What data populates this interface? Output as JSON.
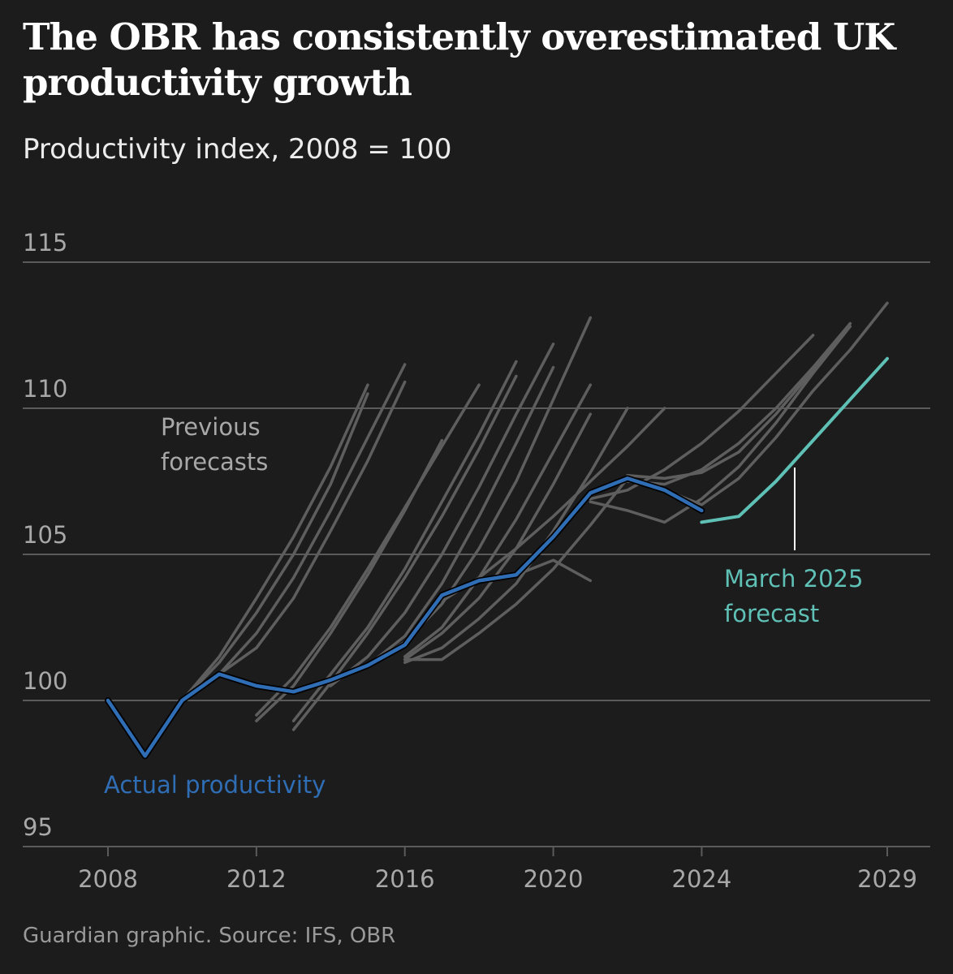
{
  "title": "The OBR has consistently overestimated UK productivity growth",
  "subtitle": "Productivity index, 2008 = 100",
  "source": "Guardian graphic. Source: IFS, OBR",
  "colors": {
    "background": "#1c1c1c",
    "gridline": "#5a5a5a",
    "axis_text": "#a8a8a8",
    "previous": "#5e5e5e",
    "previous_label": "#a8a8a8",
    "actual": "#2f6db5",
    "actual_outline": "#000000",
    "march2025": "#5fc1b6"
  },
  "chart_data": {
    "type": "line",
    "title": "The OBR has consistently overestimated UK productivity growth",
    "ylabel": "Productivity index, 2008 = 100",
    "xlim": [
      2008,
      2029
    ],
    "ylim": [
      95,
      115
    ],
    "yticks": [
      95,
      100,
      105,
      110,
      115
    ],
    "xticks": [
      2008,
      2012,
      2016,
      2020,
      2024,
      2029
    ],
    "grid": true,
    "annotations": {
      "previous": [
        "Previous",
        "forecasts"
      ],
      "actual": "Actual productivity",
      "march": [
        "March 2025",
        "forecast"
      ]
    },
    "series": [
      {
        "name": "Actual productivity",
        "role": "actual",
        "x": [
          2008,
          2009,
          2010,
          2011,
          2012,
          2013,
          2014,
          2015,
          2016,
          2017,
          2018,
          2019,
          2020,
          2021,
          2022,
          2023,
          2024
        ],
        "y": [
          100.0,
          98.1,
          100.0,
          100.9,
          100.5,
          100.3,
          100.7,
          101.2,
          101.9,
          103.6,
          104.1,
          104.3,
          105.6,
          107.1,
          107.6,
          107.2,
          106.5
        ]
      },
      {
        "name": "March 2025 forecast",
        "role": "march",
        "x": [
          2024,
          2025,
          2026,
          2027,
          2028,
          2029
        ],
        "y": [
          106.1,
          106.3,
          107.5,
          108.9,
          110.3,
          111.7
        ]
      },
      {
        "name": "Previous forecast",
        "role": "previous",
        "x": [
          2010,
          2011,
          2012,
          2013,
          2014,
          2015
        ],
        "y": [
          100.0,
          101.5,
          103.5,
          105.6,
          108.0,
          110.8
        ]
      },
      {
        "name": "Previous forecast",
        "role": "previous",
        "x": [
          2010,
          2011,
          2012,
          2013,
          2014,
          2015
        ],
        "y": [
          100.0,
          101.3,
          103.0,
          105.0,
          107.4,
          110.5
        ]
      },
      {
        "name": "Previous forecast",
        "role": "previous",
        "x": [
          2011,
          2012,
          2013,
          2014,
          2015,
          2016
        ],
        "y": [
          100.9,
          102.3,
          104.2,
          106.5,
          109.0,
          111.5
        ]
      },
      {
        "name": "Previous forecast",
        "role": "previous",
        "x": [
          2011,
          2012,
          2013,
          2014,
          2015,
          2016
        ],
        "y": [
          100.9,
          101.8,
          103.5,
          105.8,
          108.2,
          110.9
        ]
      },
      {
        "name": "Previous forecast",
        "role": "previous",
        "x": [
          2012,
          2013,
          2014,
          2015,
          2016,
          2017
        ],
        "y": [
          99.3,
          100.5,
          102.3,
          104.3,
          106.5,
          108.9
        ]
      },
      {
        "name": "Previous forecast",
        "role": "previous",
        "x": [
          2012,
          2013,
          2014,
          2015,
          2016,
          2017,
          2018
        ],
        "y": [
          99.5,
          100.8,
          102.5,
          104.5,
          106.6,
          108.7,
          110.8
        ]
      },
      {
        "name": "Previous forecast",
        "role": "previous",
        "x": [
          2013,
          2014,
          2015,
          2016,
          2017,
          2018,
          2019
        ],
        "y": [
          99.0,
          100.6,
          102.3,
          104.2,
          106.3,
          108.6,
          111.1
        ]
      },
      {
        "name": "Previous forecast",
        "role": "previous",
        "x": [
          2013,
          2014,
          2015,
          2016,
          2017,
          2018,
          2019
        ],
        "y": [
          99.3,
          100.9,
          102.5,
          104.5,
          106.8,
          109.1,
          111.6
        ]
      },
      {
        "name": "Previous forecast",
        "role": "previous",
        "x": [
          2014,
          2015,
          2016,
          2017,
          2018,
          2019,
          2020
        ],
        "y": [
          100.5,
          101.5,
          103.0,
          105.0,
          107.3,
          109.8,
          112.2
        ]
      },
      {
        "name": "Previous forecast",
        "role": "previous",
        "x": [
          2015,
          2016,
          2017,
          2018,
          2019,
          2020
        ],
        "y": [
          101.2,
          102.2,
          104.0,
          106.3,
          108.8,
          111.4
        ]
      },
      {
        "name": "Previous forecast",
        "role": "previous",
        "x": [
          2015,
          2016,
          2017,
          2018,
          2019,
          2020,
          2021
        ],
        "y": [
          101.2,
          102.0,
          103.3,
          105.2,
          107.5,
          110.3,
          113.1
        ]
      },
      {
        "name": "Previous forecast",
        "role": "previous",
        "x": [
          2016,
          2017,
          2018,
          2019,
          2020,
          2021
        ],
        "y": [
          101.5,
          102.5,
          104.2,
          106.2,
          108.5,
          110.8
        ]
      },
      {
        "name": "Previous forecast",
        "role": "previous",
        "x": [
          2016,
          2017,
          2018,
          2019,
          2020,
          2021
        ],
        "y": [
          101.4,
          102.3,
          103.5,
          105.2,
          107.4,
          109.8
        ]
      },
      {
        "name": "Previous forecast",
        "role": "previous",
        "x": [
          2016,
          2017,
          2018,
          2019,
          2020,
          2021,
          2022
        ],
        "y": [
          101.3,
          101.8,
          102.8,
          104.0,
          105.8,
          107.8,
          110.0
        ]
      },
      {
        "name": "Previous forecast",
        "role": "previous",
        "x": [
          2016,
          2017,
          2018,
          2019,
          2020,
          2021,
          2022
        ],
        "y": [
          101.4,
          101.4,
          102.3,
          103.3,
          104.5,
          106.0,
          107.6
        ]
      },
      {
        "name": "Previous forecast",
        "role": "previous",
        "x": [
          2017,
          2018,
          2019,
          2020,
          2021,
          2022,
          2023
        ],
        "y": [
          103.4,
          104.2,
          105.2,
          106.3,
          107.5,
          108.7,
          110.0
        ]
      },
      {
        "name": "Previous forecast",
        "role": "previous",
        "x": [
          2019,
          2020,
          2021
        ],
        "y": [
          104.3,
          104.8,
          104.1
        ]
      },
      {
        "name": "Previous forecast",
        "role": "previous",
        "x": [
          2021,
          2022,
          2023,
          2024,
          2025,
          2026,
          2027
        ],
        "y": [
          106.9,
          107.2,
          107.9,
          108.8,
          109.9,
          111.2,
          112.5
        ]
      },
      {
        "name": "Previous forecast",
        "role": "previous",
        "x": [
          2021,
          2022,
          2023,
          2024,
          2025,
          2026,
          2027,
          2028
        ],
        "y": [
          106.8,
          106.5,
          106.1,
          106.9,
          108.0,
          109.5,
          111.2,
          112.8
        ]
      },
      {
        "name": "Previous forecast",
        "role": "previous",
        "x": [
          2022,
          2023,
          2024,
          2025,
          2026,
          2027,
          2028
        ],
        "y": [
          107.5,
          107.4,
          107.9,
          108.8,
          110.0,
          111.4,
          112.9
        ]
      },
      {
        "name": "Previous forecast",
        "role": "previous",
        "x": [
          2022,
          2023,
          2024,
          2025,
          2026,
          2027,
          2028
        ],
        "y": [
          107.7,
          107.6,
          107.8,
          108.5,
          109.8,
          111.3,
          112.9
        ]
      },
      {
        "name": "Previous forecast",
        "role": "previous",
        "x": [
          2023,
          2024,
          2025,
          2026,
          2027,
          2028,
          2029
        ],
        "y": [
          107.2,
          106.7,
          107.6,
          109.0,
          110.6,
          112.0,
          113.6
        ]
      }
    ]
  }
}
